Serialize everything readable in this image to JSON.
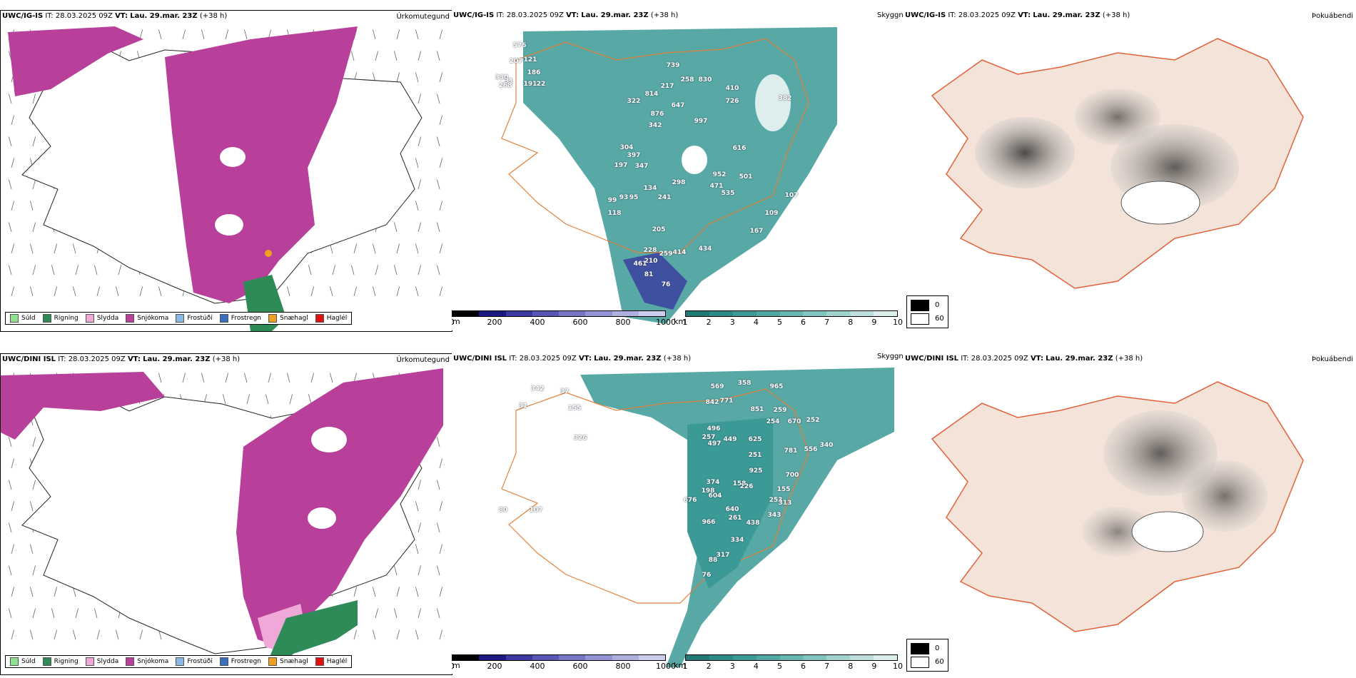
{
  "rows": [
    {
      "model": "UWC/IG-IS",
      "it_label": "IT: 28.03.2025 09Z",
      "vt_prefix": "VT:",
      "vt_value": "Lau. 29.mar. 23Z",
      "lead": "(+38 h)",
      "panels": {
        "precip_type": "Úrkomutegund",
        "cloud_base": "Skyggni",
        "fog": "Þokuábendi"
      },
      "cloud_labels": [
        "576",
        "207",
        "121",
        "186",
        "191",
        "22",
        "330",
        "31",
        "268",
        "739",
        "814",
        "217",
        "258",
        "830",
        "410",
        "726",
        "322",
        "647",
        "876",
        "997",
        "342",
        "382",
        "304",
        "397",
        "616",
        "197",
        "347",
        "952",
        "501",
        "298",
        "471",
        "134",
        "535",
        "99",
        "93",
        "95",
        "241",
        "118",
        "109",
        "205",
        "167",
        "228",
        "210",
        "259",
        "414",
        "461",
        "81",
        "76",
        "434",
        "107"
      ]
    },
    {
      "model": "UWC/DINI ISL",
      "it_label": "IT: 28.03.2025 09Z",
      "vt_prefix": "VT:",
      "vt_value": "Lau. 29.mar. 23Z",
      "lead": "(+38 h)",
      "panels": {
        "precip_type": "Úrkomutegund",
        "cloud_base": "Skyggni",
        "fog": "Þokuábendi"
      },
      "cloud_labels": [
        "342",
        "37",
        "31",
        "155",
        "326",
        "569",
        "358",
        "965",
        "842",
        "771",
        "851",
        "259",
        "254",
        "670",
        "252",
        "496",
        "257",
        "497",
        "449",
        "625",
        "781",
        "556",
        "340",
        "251",
        "925",
        "700",
        "374",
        "198",
        "158",
        "226",
        "604",
        "155",
        "253",
        "313",
        "676",
        "640",
        "966",
        "261",
        "343",
        "438",
        "334",
        "317",
        "88",
        "76",
        "107",
        "80"
      ]
    }
  ],
  "precip_legend": [
    {
      "label": "Súld",
      "color": "#8fe08f"
    },
    {
      "label": "Rigning",
      "color": "#2e8b57"
    },
    {
      "label": "Slydda",
      "color": "#f0a8d8"
    },
    {
      "label": "Snjókoma",
      "color": "#b8409a"
    },
    {
      "label": "Frostúði",
      "color": "#8ab8e8"
    },
    {
      "label": "Frostregn",
      "color": "#3a6fc0"
    },
    {
      "label": "Snæhagl",
      "color": "#f0a020"
    },
    {
      "label": "Haglél",
      "color": "#e01010"
    }
  ],
  "height_bar": {
    "unit": "m",
    "ticks": [
      "0",
      "200",
      "400",
      "600",
      "800",
      "1000"
    ]
  },
  "vis_bar": {
    "unit": "km",
    "ticks": [
      "1",
      "2",
      "3",
      "4",
      "5",
      "6",
      "7",
      "8",
      "9",
      "10"
    ]
  },
  "fog_legend": {
    "values": [
      "0",
      "60"
    ]
  },
  "colors": {
    "snow": "#b8409a",
    "rain": "#2e8b57",
    "sleet": "#f0a8d8",
    "teal": "#3b9a96",
    "land": "#f3e3d8",
    "road": "#e2613a"
  }
}
